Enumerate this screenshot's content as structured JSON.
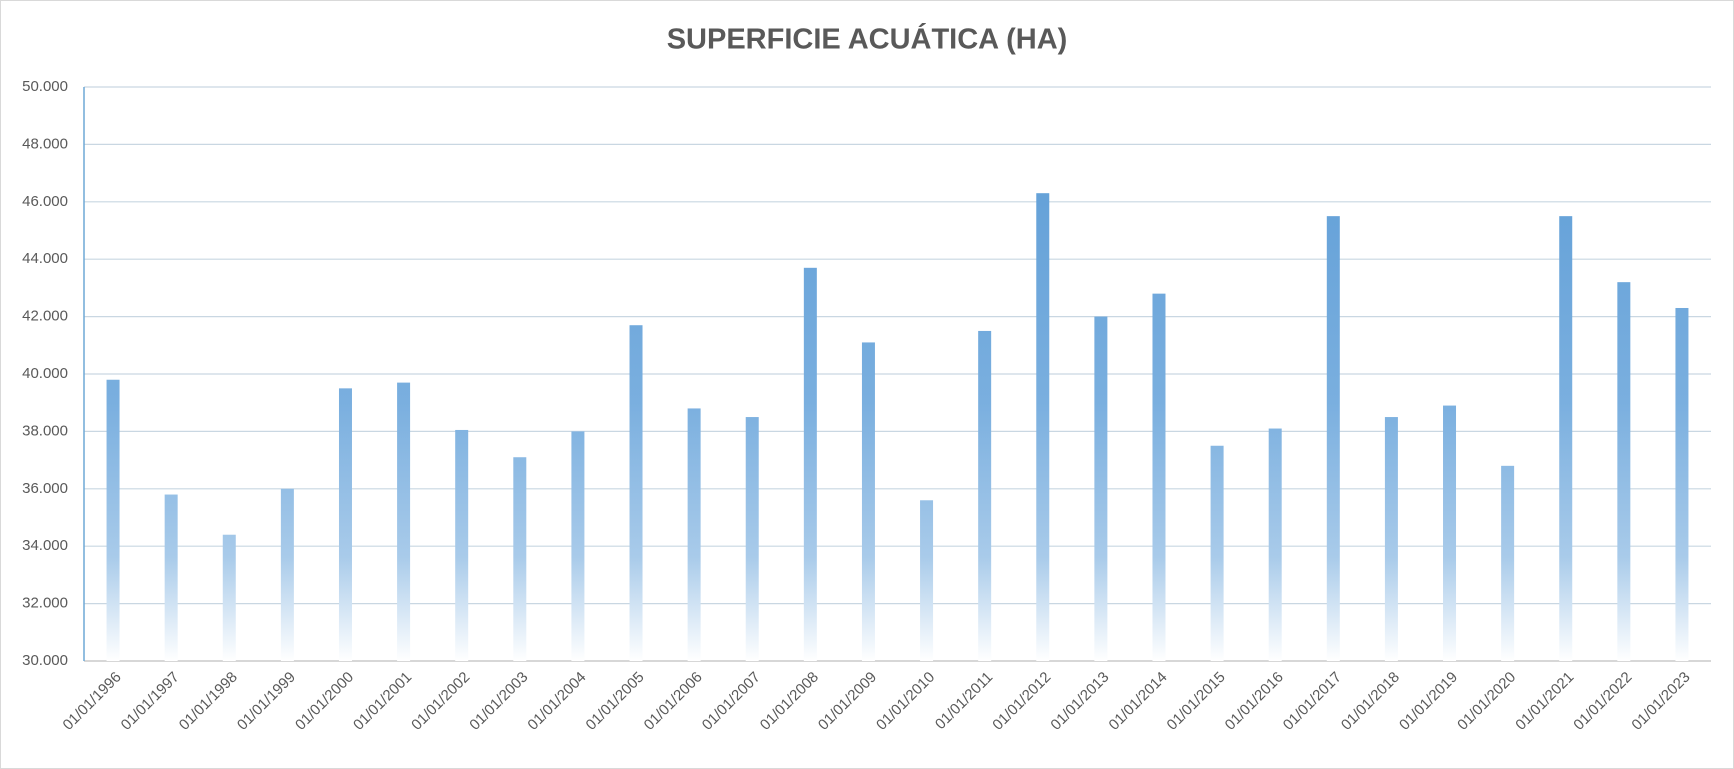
{
  "chart_data": {
    "type": "bar",
    "title": "SUPERFICIE ACUÁTICA (HA)",
    "categories": [
      "01/01/1996",
      "01/01/1997",
      "01/01/1998",
      "01/01/1999",
      "01/01/2000",
      "01/01/2001",
      "01/01/2002",
      "01/01/2003",
      "01/01/2004",
      "01/01/2005",
      "01/01/2006",
      "01/01/2007",
      "01/01/2008",
      "01/01/2009",
      "01/01/2010",
      "01/01/2011",
      "01/01/2012",
      "01/01/2013",
      "01/01/2014",
      "01/01/2015",
      "01/01/2016",
      "01/01/2017",
      "01/01/2018",
      "01/01/2019",
      "01/01/2020",
      "01/01/2021",
      "01/01/2022",
      "01/01/2023"
    ],
    "values": [
      39800,
      35800,
      34400,
      36000,
      39500,
      39700,
      38050,
      37100,
      38000,
      41700,
      38800,
      38500,
      43700,
      41100,
      35600,
      41500,
      46300,
      42000,
      42800,
      37500,
      38100,
      45500,
      38500,
      38900,
      36800,
      45500,
      43200,
      42300
    ],
    "color": "#5b9bd5",
    "ylim": [
      30000,
      50000
    ],
    "yticks": [
      {
        "value": 30000,
        "label": "30.000"
      },
      {
        "value": 32000,
        "label": "32.000"
      },
      {
        "value": 34000,
        "label": "34.000"
      },
      {
        "value": 36000,
        "label": "36.000"
      },
      {
        "value": 38000,
        "label": "38.000"
      },
      {
        "value": 40000,
        "label": "40.000"
      },
      {
        "value": 42000,
        "label": "42.000"
      },
      {
        "value": 44000,
        "label": "44.000"
      },
      {
        "value": 46000,
        "label": "46.000"
      },
      {
        "value": 48000,
        "label": "48.000"
      },
      {
        "value": 50000,
        "label": "50.000"
      }
    ],
    "grid": true
  }
}
